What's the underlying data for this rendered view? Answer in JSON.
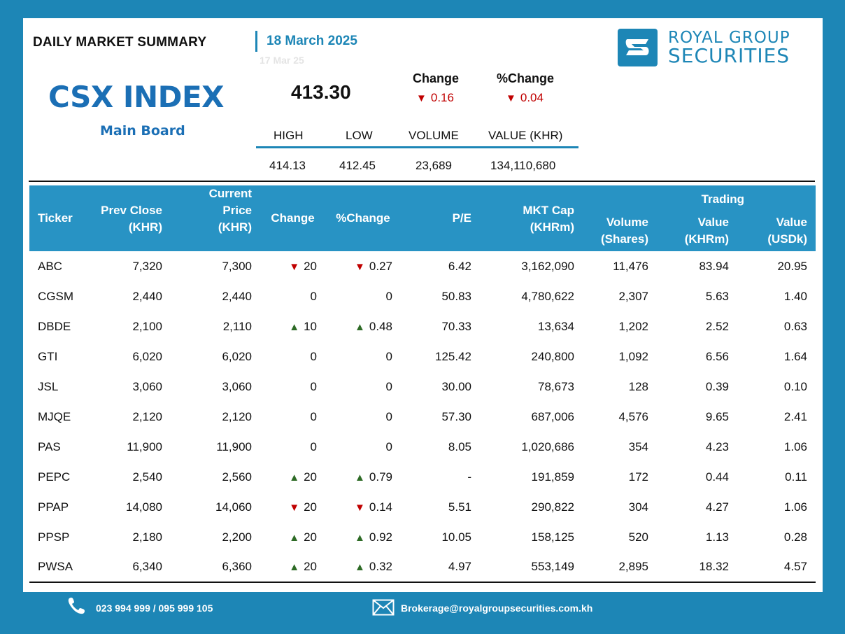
{
  "header": {
    "title": "DAILY MARKET SUMMARY",
    "date": "18 March 2025",
    "ghost_date": "17 Mar 25",
    "brand_line1": "ROYAL GROUP",
    "brand_line2": "SECURITIES"
  },
  "index": {
    "name": "CSX INDEX",
    "board": "Main Board",
    "value": "413.30",
    "change_label": "Change",
    "pct_change_label": "%Change",
    "change": "0.16",
    "pct_change": "0.04",
    "change_direction": "down"
  },
  "stats": {
    "headers": [
      "HIGH",
      "LOW",
      "VOLUME",
      "VALUE (KHR)"
    ],
    "values": [
      "414.13",
      "412.45",
      "23,689",
      "134,110,680"
    ]
  },
  "table": {
    "columns": {
      "ticker": "Ticker",
      "prev_close_1": "Prev Close",
      "prev_close_2": "(KHR)",
      "current_price_1": "Current Price",
      "current_price_2": "(KHR)",
      "change": "Change",
      "pct_change": "%Change",
      "pe": "P/E",
      "mkt_cap_1": "MKT Cap",
      "mkt_cap_2": "(KHRm)",
      "volume_1": "Volume",
      "volume_2": "(Shares)",
      "trading": "Trading",
      "value_khr_1": "Value",
      "value_khr_2": "(KHRm)",
      "value_usd_1": "Value",
      "value_usd_2": "(USDk)"
    },
    "rows": [
      {
        "ticker": "ABC",
        "prev": "7,320",
        "cur": "7,300",
        "dir": "down",
        "chg": "20",
        "pct": "0.27",
        "pe": "6.42",
        "cap": "3,162,090",
        "vol": "11,476",
        "vkhr": "83.94",
        "vusd": "20.95"
      },
      {
        "ticker": "CGSM",
        "prev": "2,440",
        "cur": "2,440",
        "dir": "flat",
        "chg": "0",
        "pct": "0",
        "pe": "50.83",
        "cap": "4,780,622",
        "vol": "2,307",
        "vkhr": "5.63",
        "vusd": "1.40"
      },
      {
        "ticker": "DBDE",
        "prev": "2,100",
        "cur": "2,110",
        "dir": "up",
        "chg": "10",
        "pct": "0.48",
        "pe": "70.33",
        "cap": "13,634",
        "vol": "1,202",
        "vkhr": "2.52",
        "vusd": "0.63"
      },
      {
        "ticker": "GTI",
        "prev": "6,020",
        "cur": "6,020",
        "dir": "flat",
        "chg": "0",
        "pct": "0",
        "pe": "125.42",
        "cap": "240,800",
        "vol": "1,092",
        "vkhr": "6.56",
        "vusd": "1.64"
      },
      {
        "ticker": "JSL",
        "prev": "3,060",
        "cur": "3,060",
        "dir": "flat",
        "chg": "0",
        "pct": "0",
        "pe": "30.00",
        "cap": "78,673",
        "vol": "128",
        "vkhr": "0.39",
        "vusd": "0.10"
      },
      {
        "ticker": "MJQE",
        "prev": "2,120",
        "cur": "2,120",
        "dir": "flat",
        "chg": "0",
        "pct": "0",
        "pe": "57.30",
        "cap": "687,006",
        "vol": "4,576",
        "vkhr": "9.65",
        "vusd": "2.41"
      },
      {
        "ticker": "PAS",
        "prev": "11,900",
        "cur": "11,900",
        "dir": "flat",
        "chg": "0",
        "pct": "0",
        "pe": "8.05",
        "cap": "1,020,686",
        "vol": "354",
        "vkhr": "4.23",
        "vusd": "1.06"
      },
      {
        "ticker": "PEPC",
        "prev": "2,540",
        "cur": "2,560",
        "dir": "up",
        "chg": "20",
        "pct": "0.79",
        "pe": "-",
        "cap": "191,859",
        "vol": "172",
        "vkhr": "0.44",
        "vusd": "0.11"
      },
      {
        "ticker": "PPAP",
        "prev": "14,080",
        "cur": "14,060",
        "dir": "down",
        "chg": "20",
        "pct": "0.14",
        "pe": "5.51",
        "cap": "290,822",
        "vol": "304",
        "vkhr": "4.27",
        "vusd": "1.06"
      },
      {
        "ticker": "PPSP",
        "prev": "2,180",
        "cur": "2,200",
        "dir": "up",
        "chg": "20",
        "pct": "0.92",
        "pe": "10.05",
        "cap": "158,125",
        "vol": "520",
        "vkhr": "1.13",
        "vusd": "0.28"
      },
      {
        "ticker": "PWSA",
        "prev": "6,340",
        "cur": "6,360",
        "dir": "up",
        "chg": "20",
        "pct": "0.32",
        "pe": "4.97",
        "cap": "553,149",
        "vol": "2,895",
        "vkhr": "18.32",
        "vusd": "4.57"
      }
    ]
  },
  "footer": {
    "phone": "023 994 999 / 095 999 105",
    "email": "Brokerage@royalgroupsecurities.com.kh"
  },
  "colors": {
    "brand_blue": "#1d86b6",
    "index_blue": "#1b6fb5",
    "down_red": "#c00000",
    "up_green": "#2e6b26"
  }
}
